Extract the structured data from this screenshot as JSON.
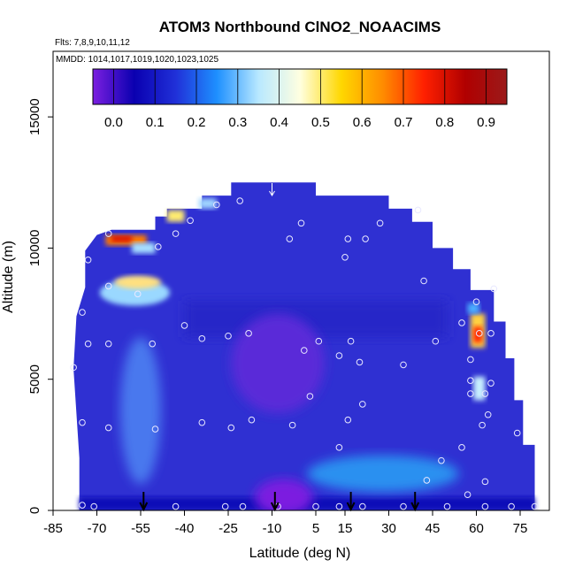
{
  "chart_data": {
    "type": "heatmap",
    "title": "ATOM3 Northbound ClNO2_NOAACIMS",
    "subtitle_flights": "Flts: 7,8,9,10,11,12",
    "subtitle_dates": "MMDD: 1014,1017,1019,1020,1023,1025",
    "xlabel": "Latitude (deg N)",
    "ylabel": "Altitude (m)",
    "xlim": [
      -85,
      85
    ],
    "ylim": [
      0,
      17500
    ],
    "x_ticks": [
      -85,
      -70,
      -55,
      -40,
      -25,
      -10,
      5,
      15,
      30,
      45,
      60,
      75
    ],
    "y_ticks": [
      0,
      5000,
      10000,
      15000
    ],
    "colorbar": {
      "range": [
        -0.05,
        0.95
      ],
      "ticks": [
        0.0,
        0.1,
        0.2,
        0.3,
        0.4,
        0.5,
        0.6,
        0.7,
        0.8,
        0.9
      ],
      "colors": [
        "#7b1fe0",
        "#0a00b0",
        "#2030d8",
        "#1e90ff",
        "#b8e8ff",
        "#ffffe0",
        "#ffd700",
        "#ff8c00",
        "#ff2000",
        "#b00000",
        "#9b1a1a"
      ]
    },
    "profile_arrows_lat": [
      -54,
      -9,
      17,
      39
    ],
    "top_arrow_lat": -10,
    "sample_points": [
      {
        "lat": -75,
        "alt": 200
      },
      {
        "lat": -71,
        "alt": 150
      },
      {
        "lat": -43,
        "alt": 150
      },
      {
        "lat": -26,
        "alt": 150
      },
      {
        "lat": -20,
        "alt": 150
      },
      {
        "lat": -8,
        "alt": 150
      },
      {
        "lat": 5,
        "alt": 150
      },
      {
        "lat": 13,
        "alt": 150
      },
      {
        "lat": 21,
        "alt": 150
      },
      {
        "lat": 35,
        "alt": 150
      },
      {
        "lat": 50,
        "alt": 150
      },
      {
        "lat": 63,
        "alt": 150
      },
      {
        "lat": 72,
        "alt": 150
      },
      {
        "lat": 80,
        "alt": 150
      },
      {
        "lat": 57,
        "alt": 600
      },
      {
        "lat": 43,
        "alt": 1150
      },
      {
        "lat": 63,
        "alt": 1100
      },
      {
        "lat": 48,
        "alt": 1900
      },
      {
        "lat": 55,
        "alt": 2400
      },
      {
        "lat": 13,
        "alt": 2400
      },
      {
        "lat": -75,
        "alt": 3350
      },
      {
        "lat": -66,
        "alt": 3150
      },
      {
        "lat": -50,
        "alt": 3100
      },
      {
        "lat": -34,
        "alt": 3350
      },
      {
        "lat": -24,
        "alt": 3150
      },
      {
        "lat": -17,
        "alt": 3450
      },
      {
        "lat": -3,
        "alt": 3250
      },
      {
        "lat": 16,
        "alt": 3450
      },
      {
        "lat": 21,
        "alt": 4050
      },
      {
        "lat": 62,
        "alt": 3250
      },
      {
        "lat": 64,
        "alt": 3650
      },
      {
        "lat": 74,
        "alt": 2950
      },
      {
        "lat": 3,
        "alt": 4350
      },
      {
        "lat": 58,
        "alt": 4450
      },
      {
        "lat": 63,
        "alt": 4450
      },
      {
        "lat": 65,
        "alt": 4850
      },
      {
        "lat": 58,
        "alt": 4950
      },
      {
        "lat": -78,
        "alt": 5450
      },
      {
        "lat": 35,
        "alt": 5550
      },
      {
        "lat": 20,
        "alt": 5650
      },
      {
        "lat": 58,
        "alt": 5750
      },
      {
        "lat": 1,
        "alt": 6100
      },
      {
        "lat": 13,
        "alt": 5900
      },
      {
        "lat": -73,
        "alt": 6350
      },
      {
        "lat": -66,
        "alt": 6350
      },
      {
        "lat": -51,
        "alt": 6350
      },
      {
        "lat": -34,
        "alt": 6550
      },
      {
        "lat": -25,
        "alt": 6650
      },
      {
        "lat": -18,
        "alt": 6750
      },
      {
        "lat": 6,
        "alt": 6450
      },
      {
        "lat": 17,
        "alt": 6450
      },
      {
        "lat": 46,
        "alt": 6450
      },
      {
        "lat": 61,
        "alt": 6750
      },
      {
        "lat": 65,
        "alt": 6750
      },
      {
        "lat": 55,
        "alt": 7150
      },
      {
        "lat": -40,
        "alt": 7050
      },
      {
        "lat": -75,
        "alt": 7550
      },
      {
        "lat": 60,
        "alt": 7950
      },
      {
        "lat": -56,
        "alt": 8250
      },
      {
        "lat": -66,
        "alt": 8550
      },
      {
        "lat": 42,
        "alt": 8750
      },
      {
        "lat": 66,
        "alt": 8450
      },
      {
        "lat": -73,
        "alt": 9550
      },
      {
        "lat": 15,
        "alt": 9650
      },
      {
        "lat": -49,
        "alt": 10050
      },
      {
        "lat": -43,
        "alt": 10550
      },
      {
        "lat": -66,
        "alt": 10550
      },
      {
        "lat": -38,
        "alt": 11050
      },
      {
        "lat": 0,
        "alt": 10950
      },
      {
        "lat": -4,
        "alt": 10350
      },
      {
        "lat": 16,
        "alt": 10350
      },
      {
        "lat": 22,
        "alt": 10350
      },
      {
        "lat": 27,
        "alt": 10950
      },
      {
        "lat": 40,
        "alt": 11450
      },
      {
        "lat": -29,
        "alt": 11650
      },
      {
        "lat": -21,
        "alt": 11800
      }
    ]
  }
}
